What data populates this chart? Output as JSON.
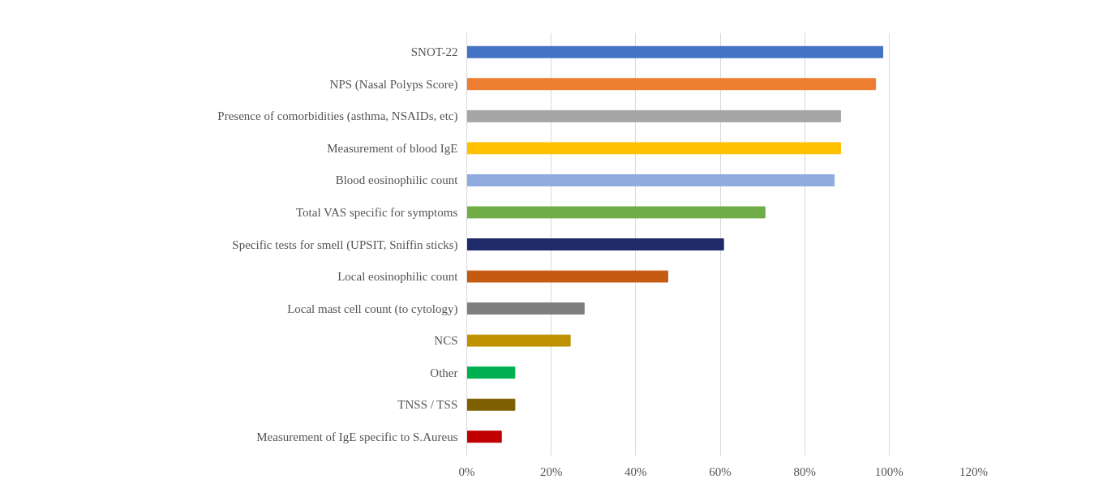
{
  "chart_data": {
    "type": "bar",
    "orientation": "horizontal",
    "categories": [
      "SNOT-22",
      "NPS (Nasal Polyps Score)",
      "Presence of comorbidities (asthma, NSAIDs, etc)",
      "Measurement of blood IgE",
      "Blood eosinophilic count",
      "Total VAS specific for symptoms",
      "Specific tests for smell (UPSIT, Sniffin sticks)",
      "Local eosinophilic count",
      "Local mast cell count (to cytology)",
      "NCS",
      "Other",
      "TNSS / TSS",
      "Measurement of IgE specific to S.Aureus"
    ],
    "values": [
      98.5,
      96.8,
      88.5,
      88.5,
      87.0,
      70.6,
      60.8,
      47.6,
      27.8,
      24.5,
      11.4,
      11.4,
      8.2
    ],
    "colors": [
      "#4472c4",
      "#ed7d31",
      "#a5a5a5",
      "#ffc000",
      "#8faadc",
      "#70ad47",
      "#1f2a6b",
      "#c55a11",
      "#7f7f7f",
      "#bf9000",
      "#00b050",
      "#7f6000",
      "#c00000"
    ],
    "xlim": [
      0,
      120
    ],
    "xticks": [
      {
        "value": 0,
        "label": "0%"
      },
      {
        "value": 20,
        "label": "20%"
      },
      {
        "value": 40,
        "label": "40%"
      },
      {
        "value": 60,
        "label": "60%"
      },
      {
        "value": 80,
        "label": "80%"
      },
      {
        "value": 100,
        "label": "100%"
      },
      {
        "value": 120,
        "label": "120%"
      }
    ],
    "grid": "x"
  }
}
